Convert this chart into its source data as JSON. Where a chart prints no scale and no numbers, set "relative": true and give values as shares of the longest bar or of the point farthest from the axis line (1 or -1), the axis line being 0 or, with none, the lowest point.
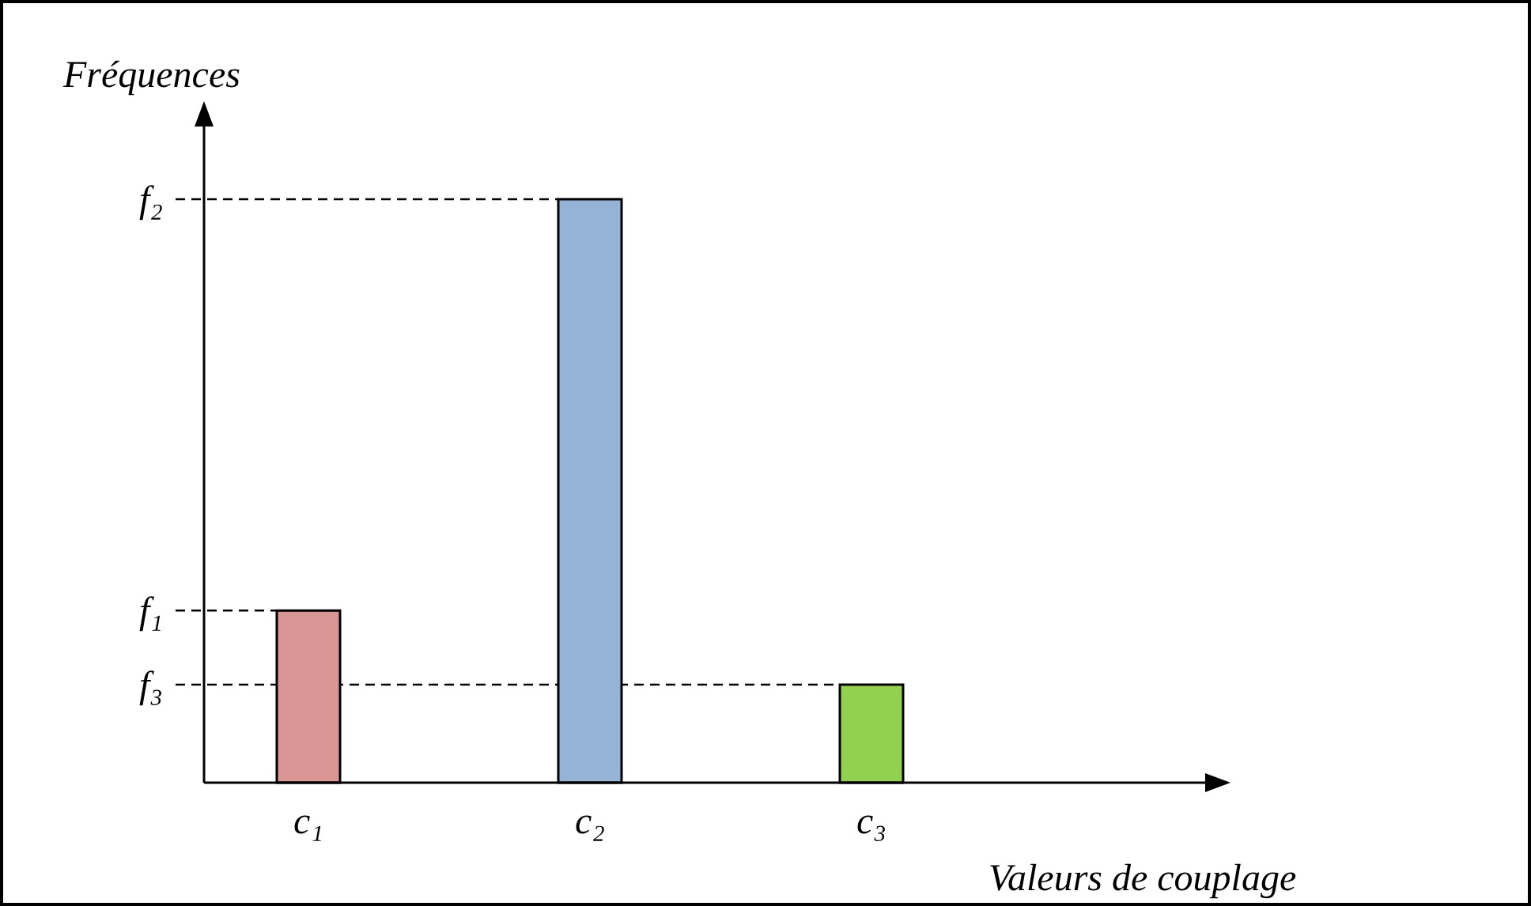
{
  "chart_data": {
    "type": "bar",
    "xlabel": "Valeurs de couplage",
    "ylabel": "Fréquences",
    "categories": [
      "c₁",
      "c₂",
      "c₃"
    ],
    "values": [
      0.295,
      1,
      0.168
    ],
    "colors": [
      "#d99694",
      "#95b3d7",
      "#92d050"
    ],
    "ref_lines": [
      {
        "axis": "y",
        "value": 0.295,
        "label": "f₁",
        "line_style": "dashed"
      },
      {
        "axis": "y",
        "value": 1,
        "label": "f₂",
        "line_style": "dashed"
      },
      {
        "axis": "y",
        "value": 0.168,
        "label": "f₃",
        "line_style": "dashed"
      }
    ],
    "relative": true
  }
}
